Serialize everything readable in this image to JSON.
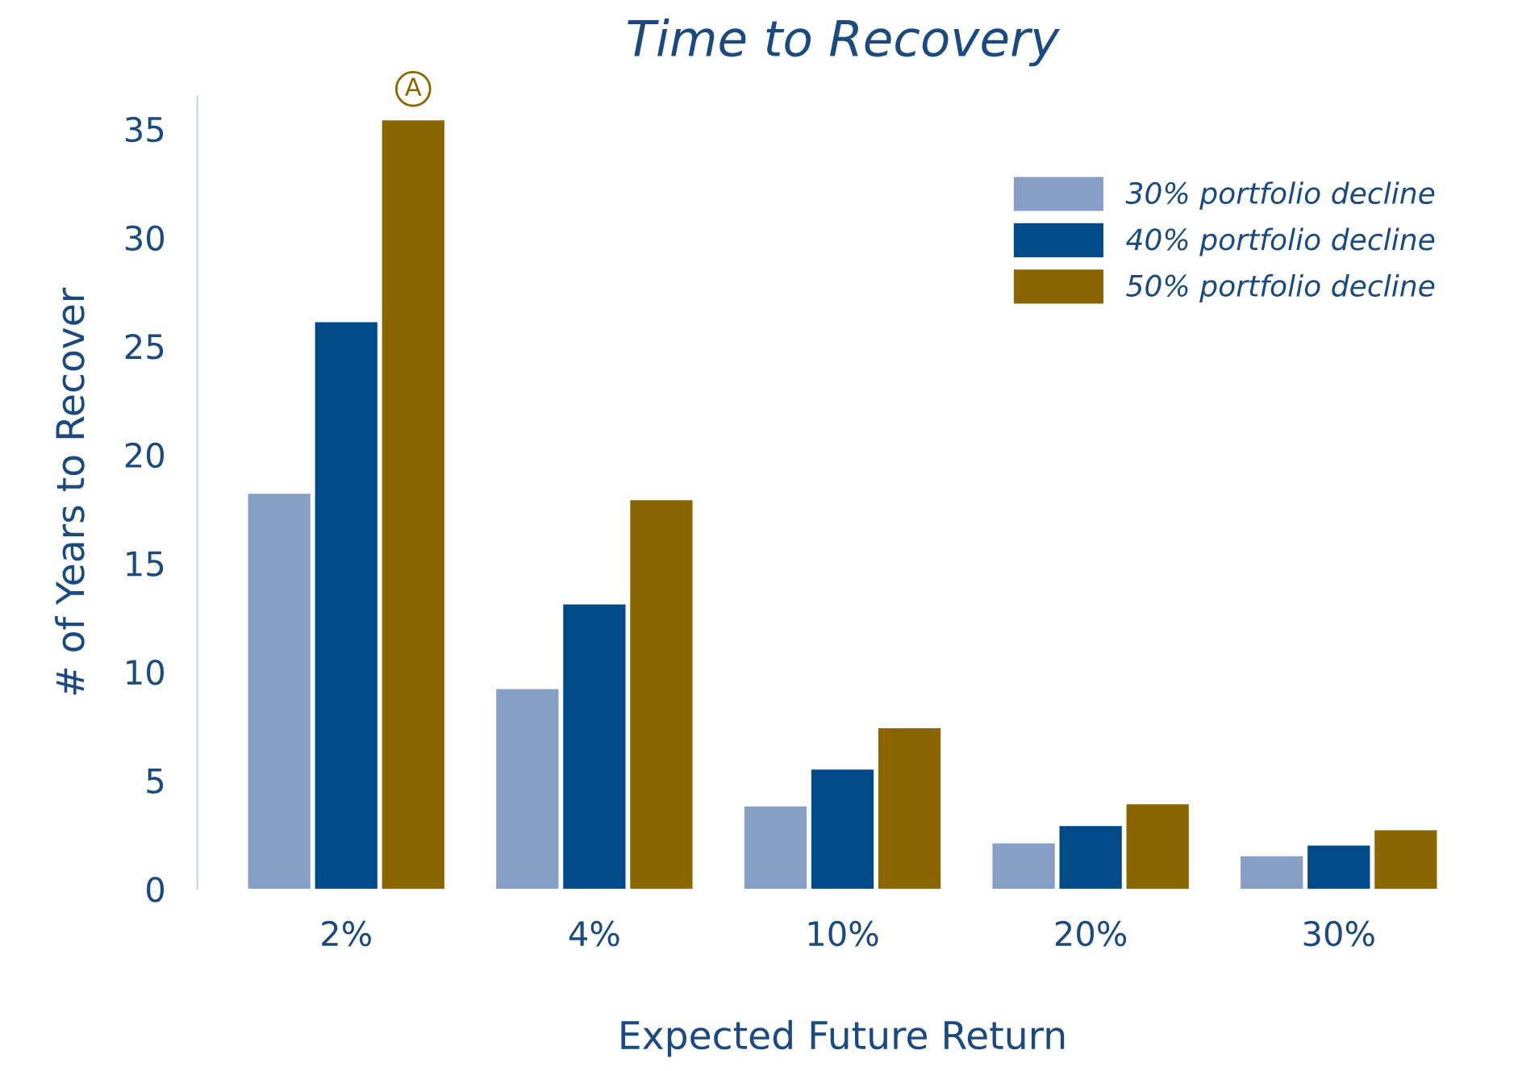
{
  "chart_data": {
    "type": "bar",
    "title": "Time to Recovery",
    "xlabel": "Expected Future Return",
    "ylabel": "# of Years to Recover",
    "categories": [
      "2%",
      "4%",
      "10%",
      "20%",
      "30%"
    ],
    "series": [
      {
        "name": "30% portfolio decline",
        "color": "#879fc4",
        "values": [
          18.2,
          9.2,
          3.8,
          2.1,
          1.5
        ]
      },
      {
        "name": "40% portfolio decline",
        "color": "#004a87",
        "values": [
          26.1,
          13.1,
          5.5,
          2.9,
          2.0
        ]
      },
      {
        "name": "50% portfolio decline",
        "color": "#8a6500",
        "values": [
          35.4,
          17.9,
          7.4,
          3.9,
          2.7
        ]
      }
    ],
    "annotations": [
      "A"
    ],
    "ylim": [
      0,
      36.5
    ],
    "yticks": [
      0,
      5,
      10,
      15,
      20,
      25,
      30,
      35
    ],
    "grid": false,
    "legend": "top right"
  }
}
